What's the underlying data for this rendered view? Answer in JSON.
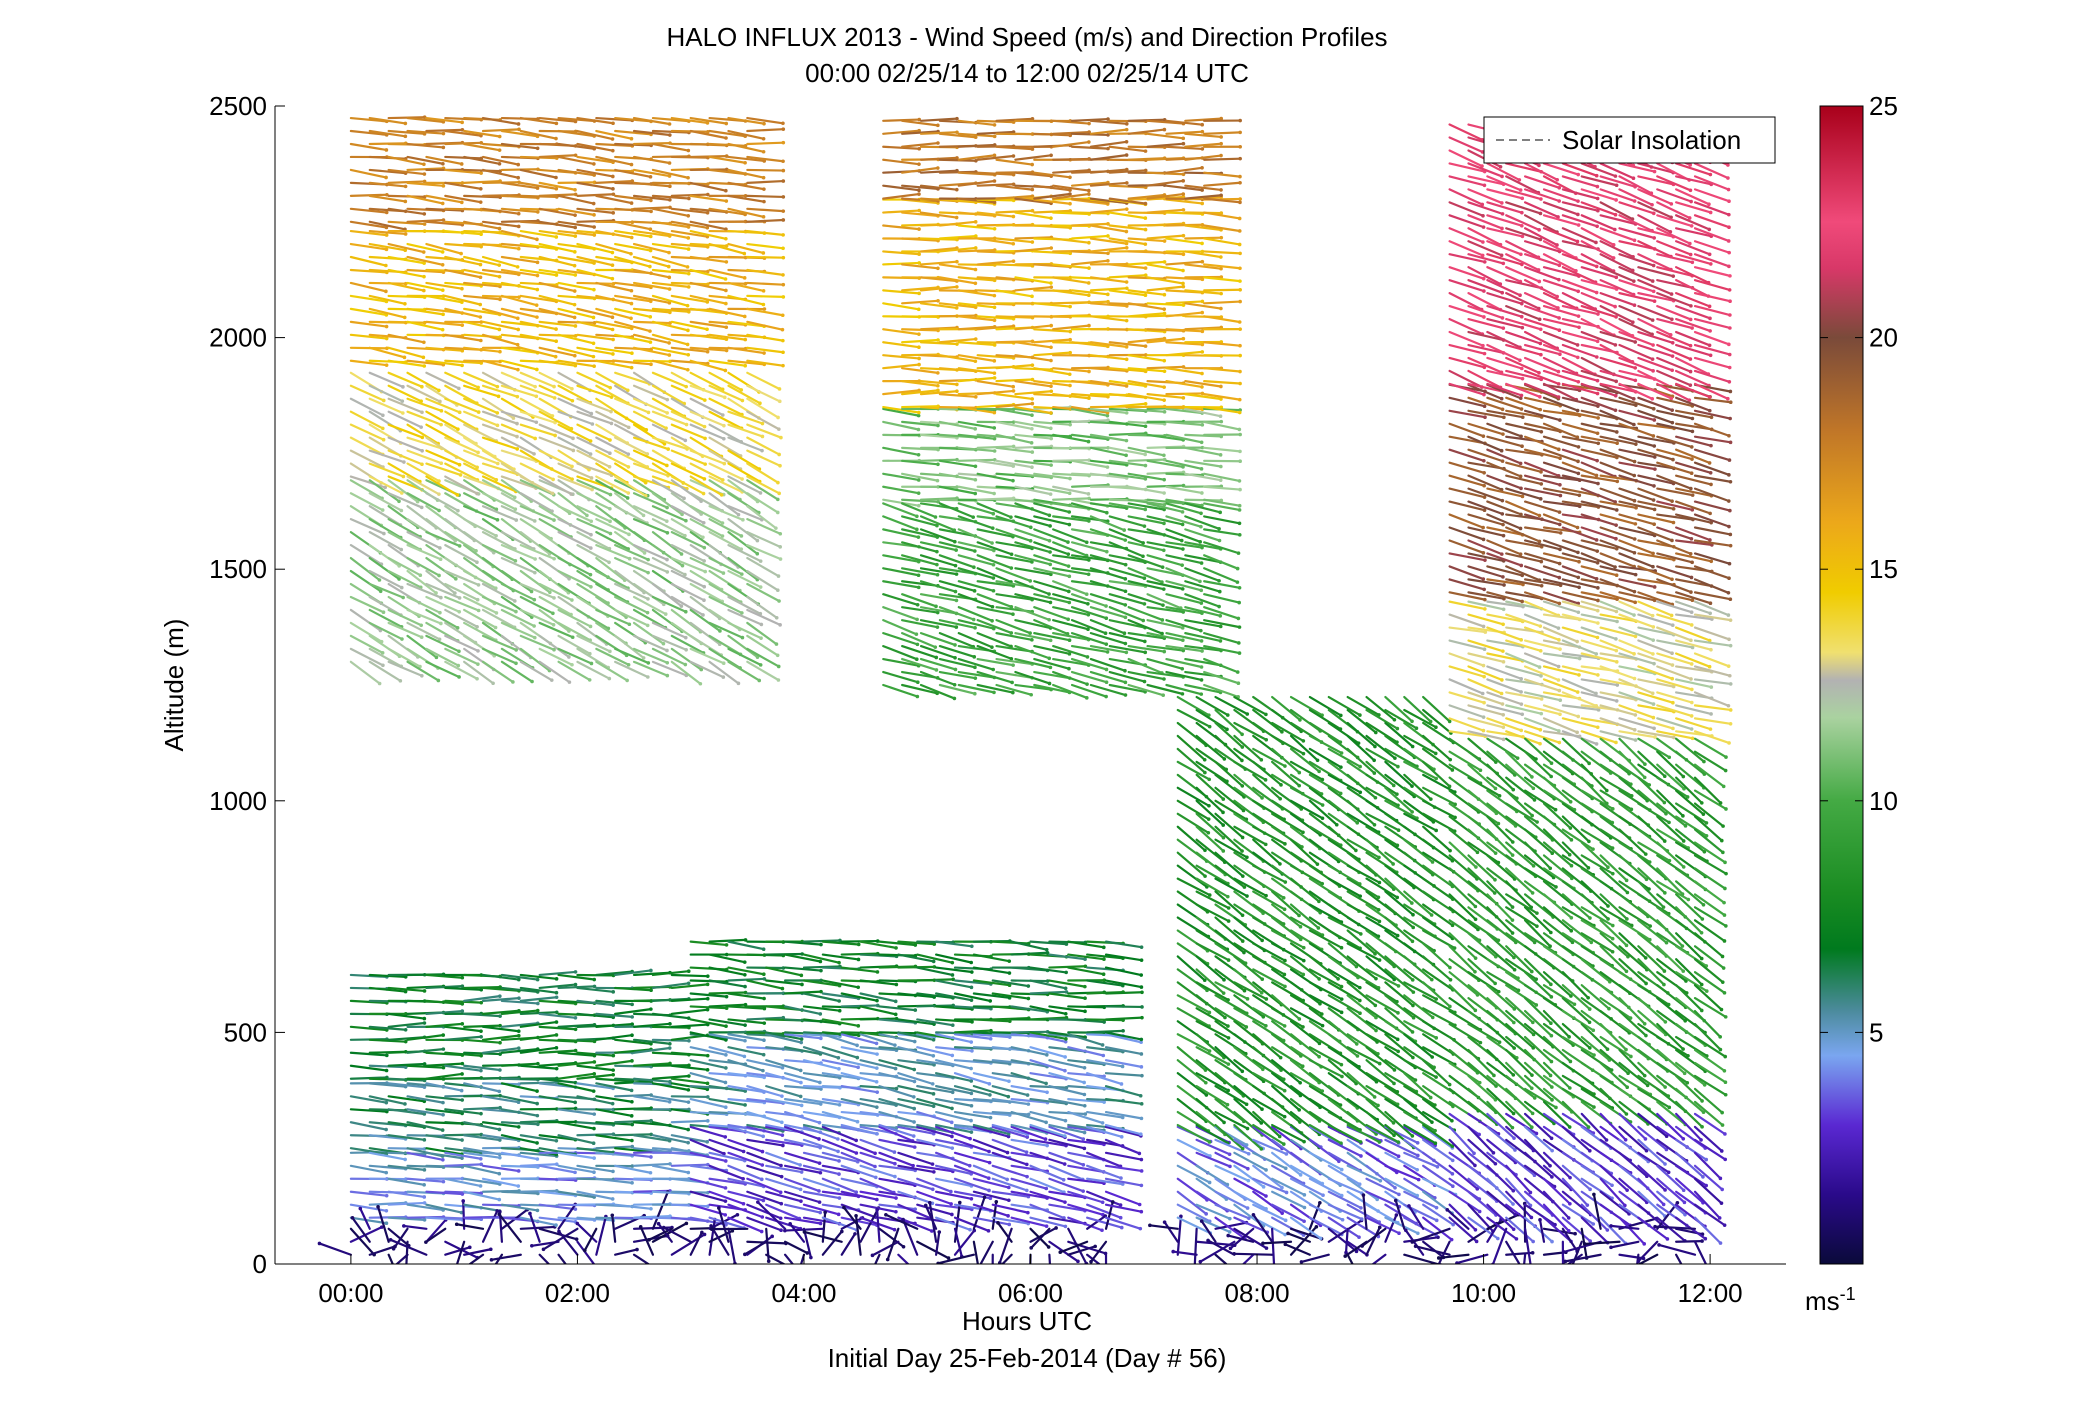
{
  "chart_data": {
    "type": "wind-barb-profile",
    "title_line1": "HALO INFLUX 2013 - Wind Speed (m/s) and Direction Profiles",
    "title_line2": "00:00 02/25/14 to 12:00 02/25/14  UTC",
    "xlabel": "Hours UTC",
    "xlabel2": "Initial Day 25-Feb-2014 (Day # 56)",
    "ylabel": "Altitude (m)",
    "xlim": [
      -0.67,
      12.67
    ],
    "ylim": [
      0,
      2500
    ],
    "xticks": [
      {
        "value": 0,
        "label": "00:00"
      },
      {
        "value": 2,
        "label": "02:00"
      },
      {
        "value": 4,
        "label": "04:00"
      },
      {
        "value": 6,
        "label": "06:00"
      },
      {
        "value": 8,
        "label": "08:00"
      },
      {
        "value": 10,
        "label": "10:00"
      },
      {
        "value": 12,
        "label": "12:00"
      }
    ],
    "yticks": [
      0,
      500,
      1000,
      1500,
      2000,
      2500
    ],
    "legend": {
      "entry": "Solar Insolation",
      "style": "dashed",
      "color": "#808080",
      "position": "top-right"
    },
    "colorbar": {
      "min": 0,
      "max": 25,
      "ticks": [
        5,
        10,
        15,
        20,
        25
      ],
      "units_base": "ms",
      "units_exp": "-1",
      "colors": [
        {
          "v": 0,
          "c": "#0a0a3a"
        },
        {
          "v": 1.5,
          "c": "#2a0a8a"
        },
        {
          "v": 3,
          "c": "#5a28d2"
        },
        {
          "v": 4.5,
          "c": "#7aa6f0"
        },
        {
          "v": 5.5,
          "c": "#4a8a9a"
        },
        {
          "v": 6.8,
          "c": "#007a1e"
        },
        {
          "v": 8,
          "c": "#1a8c22"
        },
        {
          "v": 10,
          "c": "#44aa44"
        },
        {
          "v": 11.8,
          "c": "#aad2a0"
        },
        {
          "v": 12.6,
          "c": "#b2b2b2"
        },
        {
          "v": 13.2,
          "c": "#f0e070"
        },
        {
          "v": 14.5,
          "c": "#f0cc00"
        },
        {
          "v": 16,
          "c": "#eca81a"
        },
        {
          "v": 18,
          "c": "#c07628"
        },
        {
          "v": 20,
          "c": "#7a4a3a"
        },
        {
          "v": 21.5,
          "c": "#d83868"
        },
        {
          "v": 22.5,
          "c": "#f04a7a"
        },
        {
          "v": 25,
          "c": "#a8001a"
        }
      ]
    },
    "segments": [
      {
        "t_start": 0.0,
        "t_end": 2.85,
        "layers": [
          {
            "z0": 20,
            "z1": 80,
            "speed": 1.0,
            "dir": "var"
          },
          {
            "z0": 100,
            "z1": 250,
            "speed": 4.5,
            "dir": 275
          },
          {
            "z0": 250,
            "z1": 400,
            "speed": 6.0,
            "dir": 275
          },
          {
            "z0": 400,
            "z1": 630,
            "speed": 6.8,
            "dir": 270
          }
        ]
      },
      {
        "t_start": 0.0,
        "t_end": 3.5,
        "layers": [
          {
            "z0": 1300,
            "z1": 1700,
            "speed": 11.5,
            "dir": 300
          },
          {
            "z0": 1700,
            "z1": 1950,
            "speed": 13.5,
            "dir": 295
          },
          {
            "z0": 1950,
            "z1": 2250,
            "speed": 15.5,
            "dir": 278
          },
          {
            "z0": 2250,
            "z1": 2490,
            "speed": 17.5,
            "dir": 275
          }
        ]
      },
      {
        "t_start": 3.0,
        "t_end": 6.7,
        "layers": [
          {
            "z0": 20,
            "z1": 80,
            "speed": 1.0,
            "dir": "var"
          },
          {
            "z0": 100,
            "z1": 300,
            "speed": 3.2,
            "dir": 285
          },
          {
            "z0": 300,
            "z1": 500,
            "speed": 5.0,
            "dir": 280
          },
          {
            "z0": 500,
            "z1": 700,
            "speed": 7.0,
            "dir": 275
          }
        ]
      },
      {
        "t_start": 4.7,
        "t_end": 7.6,
        "layers": [
          {
            "z0": 1250,
            "z1": 1650,
            "speed": 9.5,
            "dir": 285
          },
          {
            "z0": 1650,
            "z1": 1850,
            "speed": 11.0,
            "dir": 275
          },
          {
            "z0": 1850,
            "z1": 2300,
            "speed": 15.5,
            "dir": 272
          },
          {
            "z0": 2300,
            "z1": 2490,
            "speed": 18.0,
            "dir": 270
          }
        ]
      },
      {
        "t_start": 7.3,
        "t_end": 9.5,
        "layers": [
          {
            "z0": 20,
            "z1": 80,
            "speed": 1.0,
            "dir": "var"
          },
          {
            "z0": 100,
            "z1": 300,
            "speed": 4.0,
            "dir": 300
          },
          {
            "z0": 300,
            "z1": 1250,
            "speed": 8.5,
            "dir": 305
          }
        ]
      },
      {
        "t_start": 9.7,
        "t_end": 12.0,
        "layers": [
          {
            "z0": 20,
            "z1": 80,
            "speed": 1.0,
            "dir": "var"
          },
          {
            "z0": 100,
            "z1": 350,
            "speed": 3.0,
            "dir": 310
          },
          {
            "z0": 350,
            "z1": 1150,
            "speed": 9.0,
            "dir": 308
          },
          {
            "z0": 1150,
            "z1": 1450,
            "speed": 13.0,
            "dir": 285
          },
          {
            "z0": 1450,
            "z1": 1900,
            "speed": 19.5,
            "dir": 285
          },
          {
            "z0": 1900,
            "z1": 2480,
            "speed": 22.0,
            "dir": 290
          }
        ]
      }
    ]
  }
}
